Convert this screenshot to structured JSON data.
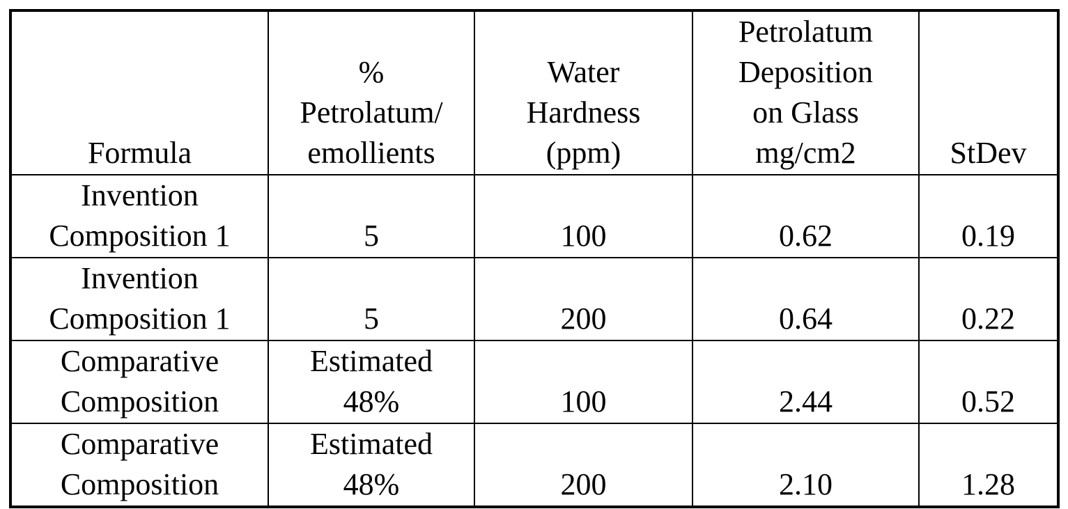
{
  "table": {
    "header": [
      [
        "Formula"
      ],
      [
        "%",
        "Petrolatum/",
        "emollients"
      ],
      [
        "Water",
        "Hardness",
        "(ppm)"
      ],
      [
        "Petrolatum",
        "Deposition",
        "on Glass",
        "mg/cm2"
      ],
      [
        "StDev"
      ]
    ],
    "rows": [
      [
        [
          "Invention",
          "Composition 1"
        ],
        [
          "5"
        ],
        [
          "100"
        ],
        [
          "0.62"
        ],
        [
          "0.19"
        ]
      ],
      [
        [
          "Invention",
          "Composition 1"
        ],
        [
          "5"
        ],
        [
          "200"
        ],
        [
          "0.64"
        ],
        [
          "0.22"
        ]
      ],
      [
        [
          "Comparative",
          "Composition"
        ],
        [
          "Estimated",
          "48%"
        ],
        [
          "100"
        ],
        [
          "2.44"
        ],
        [
          "0.52"
        ]
      ],
      [
        [
          "Comparative",
          "Composition"
        ],
        [
          "Estimated",
          "48%"
        ],
        [
          "200"
        ],
        [
          "2.10"
        ],
        [
          "1.28"
        ]
      ]
    ]
  }
}
